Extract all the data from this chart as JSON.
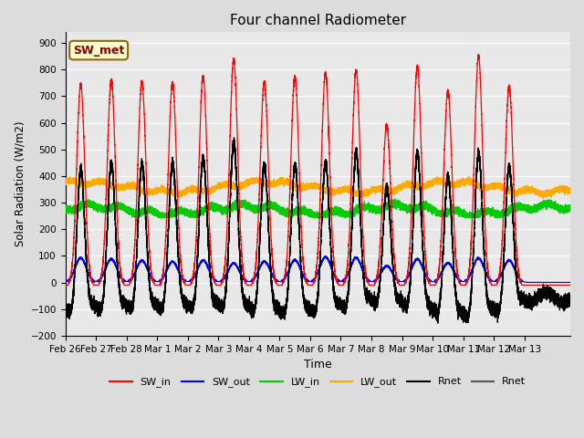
{
  "title": "Four channel Radiometer",
  "xlabel": "Time",
  "ylabel": "Solar Radiation (W/m2)",
  "ylim": [
    -200,
    940
  ],
  "yticks": [
    -200,
    -100,
    0,
    100,
    200,
    300,
    400,
    500,
    600,
    700,
    800,
    900
  ],
  "background_color": "#dcdcdc",
  "plot_bg_color": "#e8e8e8",
  "grid_color": "#ffffff",
  "annotation_text": "SW_met",
  "annotation_bg": "#ffffcc",
  "annotation_border": "#8b6914",
  "n_days": 16.5,
  "xtick_labels": [
    "Feb 26",
    "Feb 27",
    "Feb 28",
    "Mar 1",
    "Mar 2",
    "Mar 3",
    "Mar 4",
    "Mar 5",
    "Mar 6",
    "Mar 7",
    "Mar 8",
    "Mar 9",
    "Mar 10",
    "Mar 11",
    "Mar 12",
    "Mar 13"
  ],
  "SW_in_peaks": [
    0.5,
    1.5,
    2.5,
    3.5,
    4.5,
    5.5,
    6.5,
    7.5,
    8.5,
    9.5,
    10.5,
    11.5,
    12.5,
    13.5,
    14.5
  ],
  "SW_in_vals": [
    745,
    762,
    755,
    750,
    775,
    838,
    755,
    773,
    787,
    798,
    592,
    812,
    722,
    852,
    738
  ],
  "SW_out_peaks": [
    0.5,
    1.5,
    2.5,
    3.5,
    4.5,
    5.5,
    6.5,
    7.5,
    8.5,
    9.5,
    10.5,
    11.5,
    12.5,
    13.5,
    14.5
  ],
  "SW_out_vals": [
    92,
    88,
    82,
    78,
    83,
    72,
    79,
    84,
    96,
    93,
    62,
    88,
    73,
    91,
    83
  ],
  "LW_in_base": 272,
  "LW_out_base": 358,
  "Rnet_night": -100,
  "figsize": [
    6.4,
    4.8
  ],
  "dpi": 100
}
